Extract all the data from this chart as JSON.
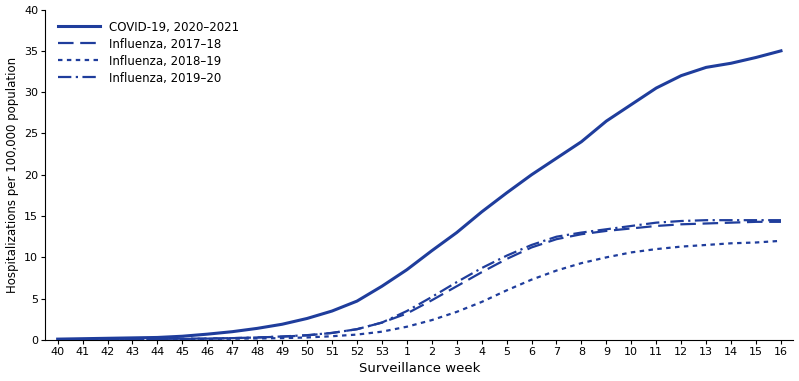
{
  "x_labels": [
    "40",
    "41",
    "42",
    "43",
    "44",
    "45",
    "46",
    "47",
    "48",
    "49",
    "50",
    "51",
    "52",
    "53",
    "1",
    "2",
    "3",
    "4",
    "5",
    "6",
    "7",
    "8",
    "9",
    "10",
    "11",
    "12",
    "13",
    "14",
    "15",
    "16"
  ],
  "x_positions": [
    0,
    1,
    2,
    3,
    4,
    5,
    6,
    7,
    8,
    9,
    10,
    11,
    12,
    13,
    14,
    15,
    16,
    17,
    18,
    19,
    20,
    21,
    22,
    23,
    24,
    25,
    26,
    27,
    28,
    29
  ],
  "covid_2020_2021": [
    0.1,
    0.15,
    0.2,
    0.25,
    0.3,
    0.45,
    0.7,
    1.0,
    1.4,
    1.9,
    2.6,
    3.5,
    4.7,
    6.5,
    8.5,
    10.8,
    13.0,
    15.5,
    17.8,
    20.0,
    22.0,
    24.0,
    26.5,
    28.5,
    30.5,
    32.0,
    33.0,
    33.5,
    34.2,
    35.0
  ],
  "flu_2017_18": [
    0.05,
    0.05,
    0.08,
    0.1,
    0.12,
    0.15,
    0.18,
    0.22,
    0.3,
    0.4,
    0.55,
    0.85,
    1.3,
    2.1,
    3.2,
    4.8,
    6.5,
    8.2,
    9.8,
    11.2,
    12.2,
    12.8,
    13.2,
    13.5,
    13.8,
    14.0,
    14.1,
    14.2,
    14.3,
    14.3
  ],
  "flu_2018_19": [
    0.05,
    0.05,
    0.05,
    0.07,
    0.09,
    0.1,
    0.12,
    0.15,
    0.18,
    0.22,
    0.3,
    0.45,
    0.65,
    1.0,
    1.6,
    2.4,
    3.4,
    4.6,
    6.0,
    7.3,
    8.4,
    9.3,
    10.0,
    10.6,
    11.0,
    11.3,
    11.5,
    11.7,
    11.8,
    12.0
  ],
  "flu_2019_20": [
    0.05,
    0.05,
    0.05,
    0.07,
    0.09,
    0.12,
    0.16,
    0.22,
    0.3,
    0.42,
    0.58,
    0.85,
    1.3,
    2.1,
    3.5,
    5.2,
    7.0,
    8.7,
    10.2,
    11.5,
    12.5,
    13.0,
    13.4,
    13.8,
    14.2,
    14.4,
    14.5,
    14.5,
    14.5,
    14.5
  ],
  "line_color": "#1f3d9c",
  "ylim": [
    0,
    40
  ],
  "yticks": [
    0,
    5,
    10,
    15,
    20,
    25,
    30,
    35,
    40
  ],
  "ylabel": "Hospitalizations per 100,000 population",
  "xlabel": "Surveillance week",
  "legend_labels": [
    "COVID-19, 2020–2021",
    "Influenza, 2017–18",
    "Influenza, 2018–19",
    "Influenza, 2019–20"
  ],
  "bg_color": "#ffffff"
}
